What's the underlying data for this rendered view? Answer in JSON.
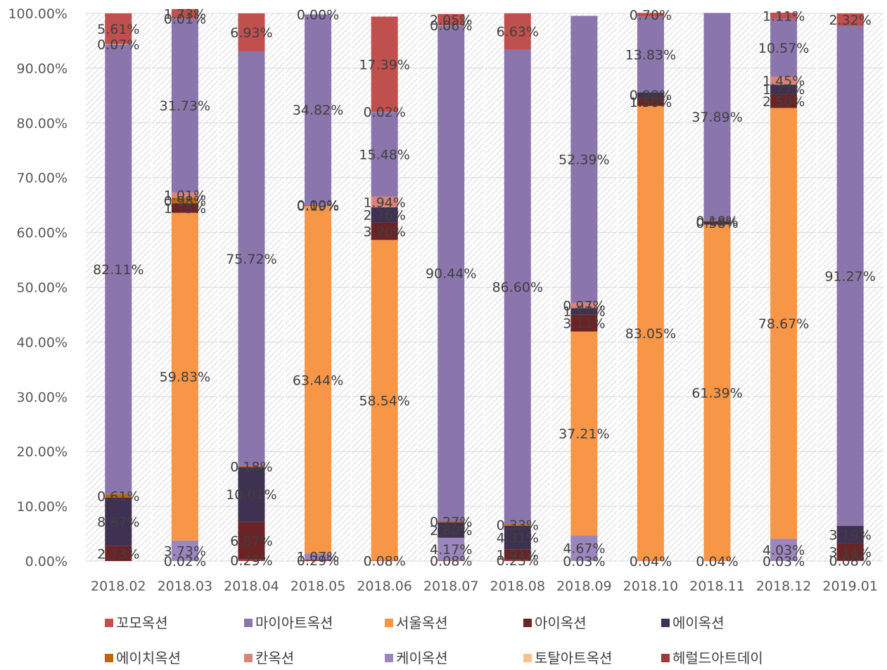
{
  "chart_data": {
    "type": "bar",
    "stacked": true,
    "ylim": [
      0,
      100
    ],
    "y_ticks": [
      "0.00%",
      "10.00%",
      "20.00%",
      "30.00%",
      "40.00%",
      "50.00%",
      "60.00%",
      "70.00%",
      "80.00%",
      "90.00%",
      "100.00%"
    ],
    "grid": true,
    "legend_position": "bottom",
    "categories": [
      "2018.02",
      "2018.03",
      "2018.04",
      "2018.05",
      "2018.06",
      "2018.07",
      "2018.08",
      "2018.09",
      "2018.10",
      "2018.11",
      "2018.12",
      "2019.01"
    ],
    "series": [
      {
        "name": "헤럴드아트데이",
        "color": "#9e3a3a",
        "values": [
          null,
          0.02,
          0.29,
          0.29,
          0.08,
          0.08,
          0.23,
          0.03,
          0.04,
          0.04,
          0.03,
          0.08
        ]
      },
      {
        "name": "케이옥션",
        "color": "#9b86bd",
        "values": [
          null,
          3.73,
          null,
          1.07,
          null,
          4.17,
          null,
          4.67,
          null,
          null,
          4.03,
          null
        ]
      },
      {
        "name": "서울옥션",
        "color": "#f79646",
        "values": [
          null,
          59.83,
          null,
          63.44,
          58.54,
          null,
          null,
          37.21,
          83.05,
          61.39,
          78.67,
          null
        ]
      },
      {
        "name": "아이옥션",
        "color": "#6b2326",
        "values": [
          2.73,
          1.75,
          6.87,
          null,
          3.2,
          null,
          1.91,
          3.11,
          1.5,
          null,
          2.5,
          3.14
        ]
      },
      {
        "name": "에이옥션",
        "color": "#3f3151",
        "values": [
          8.87,
          null,
          10.01,
          null,
          2.76,
          2.8,
          4.31,
          1.17,
          0.98,
          0.58,
          1.77,
          3.19
        ]
      },
      {
        "name": "에이치옥션",
        "color": "#c0650f",
        "values": [
          0.61,
          0.98,
          0.18,
          0.19,
          null,
          0.27,
          0.33,
          null,
          null,
          0.18,
          null,
          null
        ]
      },
      {
        "name": "칸옥션",
        "color": "#d9837a",
        "values": [
          null,
          1.01,
          null,
          0.0,
          1.94,
          null,
          null,
          0.97,
          null,
          null,
          1.45,
          null
        ]
      },
      {
        "name": "마이아트옥션",
        "color": "#8a75ad",
        "values": [
          82.11,
          31.73,
          75.72,
          34.82,
          15.48,
          90.44,
          86.6,
          52.39,
          13.83,
          37.89,
          10.57,
          91.27
        ]
      },
      {
        "name": "토탈아트옥션",
        "color": "#fac08f",
        "values": [
          0.07,
          0.01,
          null,
          0.0,
          0.02,
          0.06,
          null,
          null,
          null,
          null,
          null,
          null
        ]
      },
      {
        "name": "꼬모옥션",
        "color": "#c0504d",
        "values": [
          5.61,
          1.73,
          6.93,
          null,
          17.39,
          2.05,
          6.63,
          null,
          0.7,
          null,
          1.11,
          2.32
        ]
      }
    ],
    "legend": [
      {
        "name": "꼬모옥션",
        "color": "#c0504d"
      },
      {
        "name": "마이아트옥션",
        "color": "#8a75ad"
      },
      {
        "name": "서울옥션",
        "color": "#f79646"
      },
      {
        "name": "아이옥션",
        "color": "#6b2326"
      },
      {
        "name": "에이옥션",
        "color": "#3f3151"
      },
      {
        "name": "에이치옥션",
        "color": "#c0650f"
      },
      {
        "name": "칸옥션",
        "color": "#d9837a"
      },
      {
        "name": "케이옥션",
        "color": "#9b86bd"
      },
      {
        "name": "토탈아트옥션",
        "color": "#fac08f"
      },
      {
        "name": "헤럴드아트데이",
        "color": "#9e3a3a"
      }
    ]
  }
}
